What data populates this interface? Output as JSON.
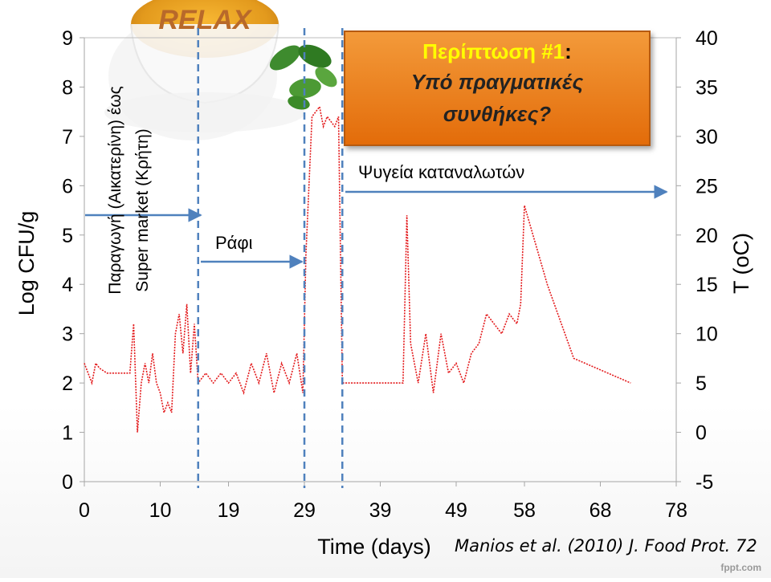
{
  "decor": {
    "logo_text": "RELAX",
    "watermark": "fppt.com"
  },
  "callout": {
    "line1_main": "Περίπτωση #1",
    "line1_colon": ":",
    "line2": "Υπό πραγματικές",
    "line3": "συνθήκες?"
  },
  "annotations": {
    "production": [
      "Παραγωγή (Αικατερίνη) έως",
      "Super market (Κρήτη)"
    ],
    "shelf": "Ράφι",
    "fridges": "Ψυγεία καταναλωτών"
  },
  "citation": "Manios et al. (2010) J. Food Prot. 72",
  "colors": {
    "series": "#e31a1c",
    "markers": "#4f81bd",
    "callout": "#e36c0a",
    "callout_title": "#ffff00"
  },
  "chart_data": {
    "type": "line",
    "xlabel": "Time (days)",
    "ylabel": "Log CFU/g",
    "y2label": "T (oC)",
    "x_ticks": [
      0,
      10,
      19,
      29,
      39,
      49,
      58,
      68,
      78
    ],
    "xlim": [
      0,
      78
    ],
    "y_ticks": [
      0,
      1,
      2,
      3,
      4,
      5,
      6,
      7,
      8,
      9
    ],
    "ylim": [
      0,
      9
    ],
    "y2_ticks": [
      -5,
      0,
      5,
      10,
      15,
      20,
      25,
      30,
      35,
      40
    ],
    "y2lim": [
      -5,
      40
    ],
    "phase_boundaries": [
      15,
      29,
      34
    ],
    "series": [
      {
        "axis": "y2",
        "style": "dotted",
        "x": [
          0,
          0.5,
          1,
          1.5,
          2,
          3,
          4,
          5,
          6,
          6.5,
          7,
          7.5,
          8,
          8.5,
          9,
          9.5,
          10,
          10.5,
          11,
          11.5,
          12,
          12.5,
          13,
          13.5,
          14,
          14.5,
          15,
          16,
          17,
          18,
          19,
          20,
          21,
          22,
          23,
          24,
          25,
          26,
          27,
          28,
          28.8,
          29.2,
          30,
          31,
          31.5,
          32,
          33,
          33.5,
          34,
          35,
          37,
          39,
          41,
          42,
          42.5,
          43,
          44,
          45,
          46,
          47,
          48,
          49,
          50,
          51,
          52,
          53,
          54,
          55,
          56,
          57,
          57.5,
          58,
          61,
          64.5,
          72
        ],
        "y": [
          7,
          6,
          5,
          7,
          6.5,
          6,
          6,
          6,
          6,
          11,
          0,
          5,
          7,
          5,
          8,
          5,
          4,
          2,
          3,
          2,
          10,
          12,
          8,
          13,
          6,
          11,
          5,
          6,
          5,
          6,
          5,
          6,
          4,
          7,
          5,
          8,
          4,
          7,
          5,
          8,
          4,
          18,
          32,
          33,
          31,
          32,
          31,
          32,
          5,
          5,
          5,
          5,
          5,
          5,
          22,
          9,
          5,
          10,
          4,
          10,
          6,
          7,
          5,
          8,
          9,
          12,
          11,
          10,
          12,
          11,
          13,
          23,
          15,
          7.5,
          5
        ]
      }
    ]
  }
}
